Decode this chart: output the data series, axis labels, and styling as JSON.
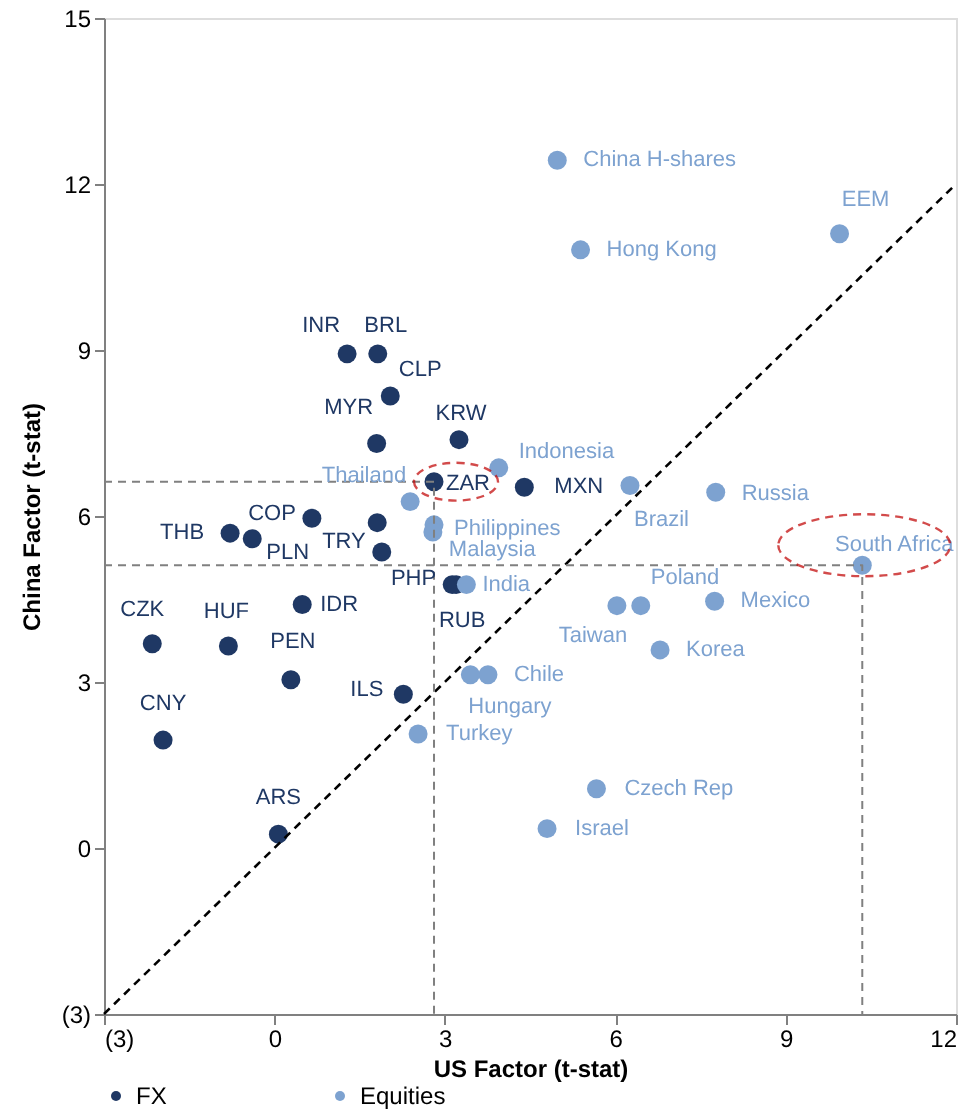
{
  "chart_data": {
    "type": "scatter",
    "xlabel": "US Factor (t-stat)",
    "ylabel": "China Factor (t-stat)",
    "xlim": [
      -3,
      12
    ],
    "ylim": [
      -3,
      15
    ],
    "xticks": [
      {
        "value": -3,
        "label": "(3)"
      },
      0,
      3,
      6,
      9,
      12
    ],
    "yticks": [
      {
        "value": -3,
        "label": "(3)"
      },
      0,
      3,
      6,
      9,
      12,
      15
    ],
    "grid": false,
    "legend": "bottom",
    "marker": "circle",
    "series": [
      {
        "name": "FX",
        "color": "#1f3864",
        "x": [
          1.28,
          1.82,
          2.04,
          1.8,
          3.25,
          2.81,
          4.4,
          0.66,
          1.81,
          -0.78,
          -0.39,
          1.89,
          3.13,
          3.2,
          0.49,
          -2.15,
          -0.81,
          0.29,
          2.27,
          -1.96,
          0.07
        ],
        "values": [
          8.93,
          8.93,
          8.17,
          7.31,
          7.38,
          6.62,
          6.52,
          5.96,
          5.88,
          5.69,
          5.59,
          5.35,
          4.76,
          4.76,
          4.4,
          3.69,
          3.65,
          3.04,
          2.78,
          1.95,
          0.25
        ]
      },
      {
        "name": "Equities",
        "color": "#7da2d0",
        "x": [
          4.98,
          5.39,
          9.95,
          3.95,
          6.26,
          7.77,
          2.39,
          2.81,
          2.79,
          10.35,
          3.38,
          6.45,
          6.03,
          7.75,
          6.79,
          3.76,
          3.45,
          2.53,
          5.67,
          4.8
        ],
        "values": [
          12.43,
          10.81,
          11.1,
          6.87,
          6.55,
          6.43,
          6.26,
          5.84,
          5.71,
          5.11,
          4.76,
          4.38,
          4.38,
          4.46,
          3.58,
          3.13,
          3.13,
          2.06,
          1.07,
          0.35
        ]
      },
      {
        "type": "line",
        "color": "#000000",
        "line_style": "dashed",
        "marker": "none",
        "x": [
          -3,
          12
        ],
        "values": [
          -3,
          12
        ]
      },
      {
        "type": "line",
        "color": "#808080",
        "line_style": "dashed",
        "marker": "none",
        "x": [
          -3,
          2.81,
          2.81
        ],
        "values": [
          6.62,
          6.62,
          -3
        ]
      },
      {
        "type": "line",
        "color": "#808080",
        "line_style": "dashed",
        "marker": "none",
        "x": [
          -3,
          10.35,
          10.35
        ],
        "values": [
          5.11,
          5.11,
          -3
        ]
      }
    ],
    "annotations": [
      {
        "text": "INR",
        "x": 1.28,
        "y": 8.93
      },
      {
        "text": "BRL",
        "x": 1.82,
        "y": 8.93
      },
      {
        "text": "CLP",
        "x": 2.04,
        "y": 8.17
      },
      {
        "text": "MYR",
        "x": 1.8,
        "y": 7.31
      },
      {
        "text": "KRW",
        "x": 3.25,
        "y": 7.38
      },
      {
        "text": "ZAR",
        "x": 2.81,
        "y": 6.62
      },
      {
        "text": "MXN",
        "x": 4.4,
        "y": 6.52
      },
      {
        "text": "COP",
        "x": 0.66,
        "y": 5.96
      },
      {
        "text": "THB",
        "x": -0.78,
        "y": 5.69
      },
      {
        "text": "PLN",
        "x": -0.39,
        "y": 5.59
      },
      {
        "text": "TRY",
        "x": 1.89,
        "y": 5.35
      },
      {
        "text": "PHP",
        "x": 3.13,
        "y": 4.76
      },
      {
        "text": "RUB",
        "x": 3.2,
        "y": 4.76
      },
      {
        "text": "IDR",
        "x": 0.49,
        "y": 4.4
      },
      {
        "text": "CZK",
        "x": -2.15,
        "y": 3.69
      },
      {
        "text": "HUF",
        "x": -0.81,
        "y": 3.65
      },
      {
        "text": "PEN",
        "x": 0.29,
        "y": 3.04
      },
      {
        "text": "ILS",
        "x": 2.27,
        "y": 2.78
      },
      {
        "text": "CNY",
        "x": -1.96,
        "y": 1.95
      },
      {
        "text": "ARS",
        "x": 0.07,
        "y": 0.25
      },
      {
        "text": "China H-shares",
        "x": 4.98,
        "y": 12.43
      },
      {
        "text": "Hong Kong",
        "x": 5.39,
        "y": 10.81
      },
      {
        "text": "EEM",
        "x": 9.95,
        "y": 11.1
      },
      {
        "text": "Indonesia",
        "x": 3.95,
        "y": 6.87
      },
      {
        "text": "Brazil",
        "x": 6.26,
        "y": 6.55
      },
      {
        "text": "Russia",
        "x": 7.77,
        "y": 6.43
      },
      {
        "text": "Thailand",
        "x": 2.39,
        "y": 6.26
      },
      {
        "text": "Philippines",
        "x": 2.81,
        "y": 5.84
      },
      {
        "text": "Malaysia",
        "x": 2.79,
        "y": 5.71
      },
      {
        "text": "South Africa",
        "x": 10.35,
        "y": 5.11
      },
      {
        "text": "India",
        "x": 3.38,
        "y": 4.76
      },
      {
        "text": "Poland",
        "x": 6.45,
        "y": 4.38
      },
      {
        "text": "Taiwan",
        "x": 6.03,
        "y": 4.38
      },
      {
        "text": "Mexico",
        "x": 7.75,
        "y": 4.46
      },
      {
        "text": "Korea",
        "x": 6.79,
        "y": 3.58
      },
      {
        "text": "Chile",
        "x": 3.76,
        "y": 3.13
      },
      {
        "text": "Hungary",
        "x": 3.45,
        "y": 3.13
      },
      {
        "text": "Turkey",
        "x": 2.53,
        "y": 2.06
      },
      {
        "text": "Czech Rep",
        "x": 5.67,
        "y": 1.07
      },
      {
        "text": "Israel",
        "x": 4.8,
        "y": 0.35
      }
    ]
  }
}
